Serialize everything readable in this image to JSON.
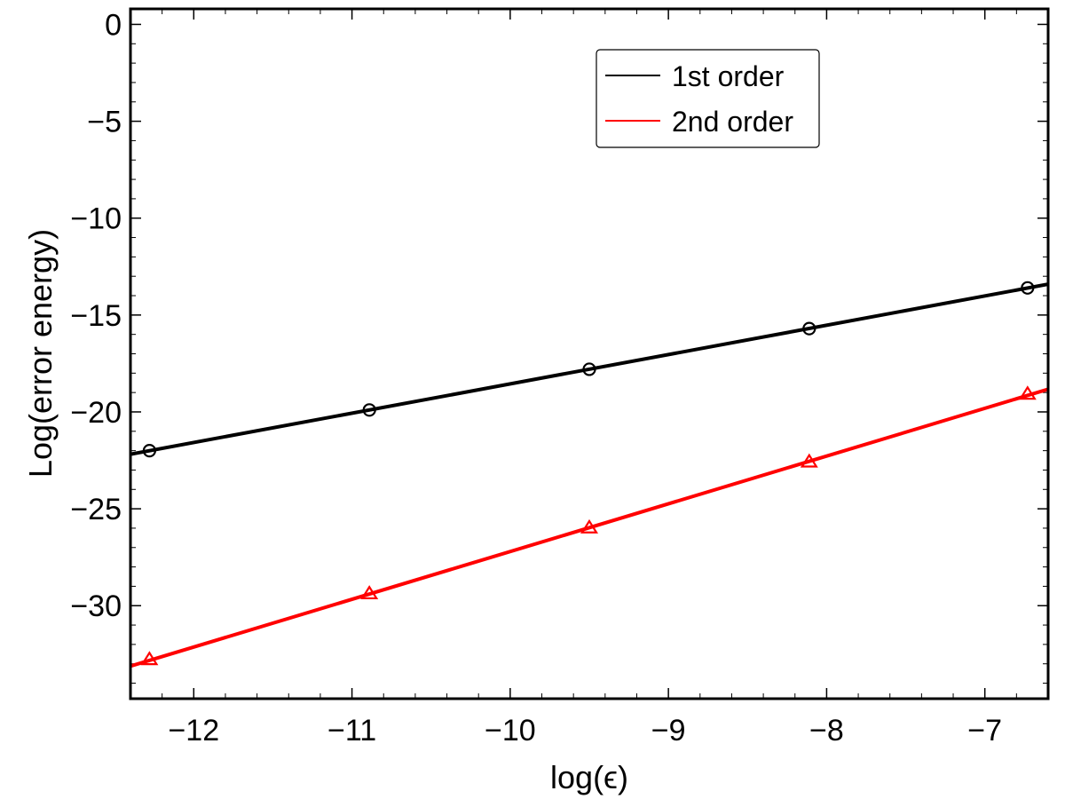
{
  "chart_data": {
    "type": "line",
    "xlabel": "log(ϵ)",
    "ylabel": "Log(error energy)",
    "xlim": [
      -12.4,
      -6.6
    ],
    "ylim": [
      -34.8,
      0.8
    ],
    "xticks": [
      -12,
      -11,
      -10,
      -9,
      -8,
      -7
    ],
    "yticks": [
      0,
      -5,
      -10,
      -15,
      -20,
      -25,
      -30
    ],
    "legend_position": "top-right",
    "series": [
      {
        "name": "1st order",
        "color": "#000000",
        "marker": "circle",
        "x": [
          -12.28,
          -10.89,
          -9.5,
          -8.11,
          -6.73
        ],
        "y": [
          -22.0,
          -19.9,
          -17.8,
          -15.7,
          -13.6
        ]
      },
      {
        "name": "2nd order",
        "color": "#ff0000",
        "marker": "triangle",
        "x": [
          -12.28,
          -10.89,
          -9.5,
          -8.11,
          -6.73
        ],
        "y": [
          -32.8,
          -29.4,
          -26.0,
          -22.6,
          -19.1
        ]
      }
    ]
  }
}
